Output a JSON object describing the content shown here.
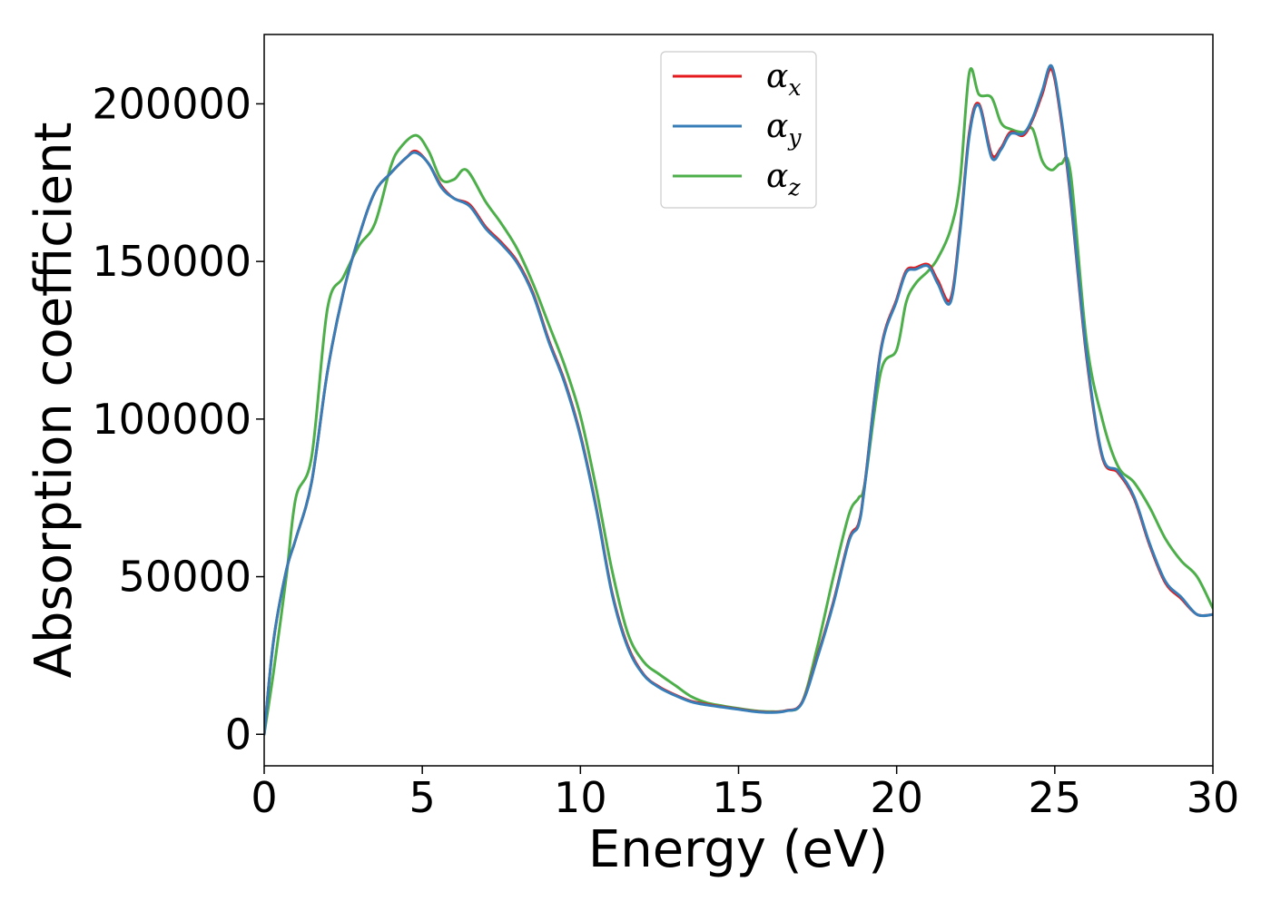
{
  "chart_data": {
    "type": "line",
    "title": "",
    "xlabel": "Energy (eV)",
    "ylabel": "Absorption coefficient",
    "xlim": [
      0,
      30
    ],
    "ylim": [
      -10000,
      222000
    ],
    "xticks": [
      0,
      5,
      10,
      15,
      20,
      25,
      30
    ],
    "yticks": [
      0,
      50000,
      100000,
      150000,
      200000
    ],
    "grid": false,
    "legend": "upper-center",
    "series": [
      {
        "name": "α",
        "subscript": "x",
        "color": "#e41a1c",
        "x": [
          0,
          0.3,
          0.7,
          1.0,
          1.5,
          2.0,
          2.5,
          3.0,
          3.5,
          4.0,
          4.5,
          4.8,
          5.2,
          5.6,
          6.0,
          6.5,
          7.0,
          7.5,
          8.0,
          8.5,
          9.0,
          9.5,
          10.0,
          10.5,
          11.0,
          11.5,
          12.0,
          12.5,
          13.0,
          13.5,
          14.0,
          14.5,
          15.0,
          15.5,
          16.0,
          16.5,
          17.0,
          17.5,
          18.0,
          18.5,
          18.8,
          19.0,
          19.5,
          20.0,
          20.3,
          20.6,
          21.0,
          21.3,
          21.7,
          22.0,
          22.3,
          22.6,
          23.0,
          23.3,
          23.6,
          24.0,
          24.3,
          24.6,
          24.9,
          25.2,
          25.5,
          26.0,
          26.5,
          27.0,
          27.5,
          28.0,
          28.5,
          29.0,
          29.5,
          30.0
        ],
        "y": [
          0,
          30000,
          52000,
          62000,
          80000,
          115000,
          140000,
          158000,
          172000,
          178000,
          183000,
          185000,
          181000,
          174000,
          170000,
          168000,
          161000,
          156000,
          150000,
          140000,
          125000,
          112000,
          95000,
          72000,
          45000,
          28000,
          19000,
          15000,
          12500,
          10500,
          9500,
          8700,
          8000,
          7300,
          7000,
          7500,
          10000,
          25000,
          42000,
          62000,
          67000,
          80000,
          122000,
          138000,
          147000,
          148000,
          149000,
          144000,
          138000,
          160000,
          191000,
          200000,
          184000,
          186000,
          191000,
          190000,
          195000,
          203000,
          211000,
          195000,
          170000,
          120000,
          88000,
          83000,
          75000,
          60000,
          48000,
          43000,
          38000,
          38000
        ]
      },
      {
        "name": "α",
        "subscript": "y",
        "color": "#377eb8",
        "x": [
          0,
          0.3,
          0.7,
          1.0,
          1.5,
          2.0,
          2.5,
          3.0,
          3.5,
          4.0,
          4.5,
          4.8,
          5.2,
          5.6,
          6.0,
          6.5,
          7.0,
          7.5,
          8.0,
          8.5,
          9.0,
          9.5,
          10.0,
          10.5,
          11.0,
          11.5,
          12.0,
          12.5,
          13.0,
          13.5,
          14.0,
          14.5,
          15.0,
          15.5,
          16.0,
          16.5,
          17.0,
          17.5,
          18.0,
          18.5,
          18.8,
          19.0,
          19.5,
          20.0,
          20.3,
          20.6,
          21.0,
          21.3,
          21.7,
          22.0,
          22.3,
          22.6,
          23.0,
          23.3,
          23.6,
          24.0,
          24.3,
          24.6,
          24.9,
          25.2,
          25.5,
          26.0,
          26.5,
          27.0,
          27.5,
          28.0,
          28.5,
          29.0,
          29.5,
          30.0
        ],
        "y": [
          0,
          30000,
          52000,
          62000,
          80000,
          115000,
          140000,
          158000,
          172000,
          178000,
          183000,
          184500,
          181000,
          173500,
          170000,
          167500,
          160500,
          155500,
          149500,
          139500,
          124500,
          111500,
          94500,
          71500,
          44500,
          27500,
          18800,
          14800,
          12300,
          10300,
          9300,
          8600,
          7900,
          7200,
          6900,
          7400,
          9800,
          24500,
          41500,
          61500,
          66500,
          79500,
          121500,
          137500,
          146500,
          147500,
          148500,
          143000,
          137000,
          159000,
          190000,
          199500,
          183000,
          185500,
          190500,
          190500,
          195500,
          204000,
          212000,
          196000,
          171000,
          121000,
          88500,
          83500,
          75500,
          60500,
          48500,
          43500,
          38000,
          38000
        ]
      },
      {
        "name": "α",
        "subscript": "z",
        "color": "#4daf4a",
        "x": [
          0,
          0.3,
          0.7,
          1.0,
          1.5,
          2.0,
          2.5,
          3.0,
          3.5,
          4.0,
          4.3,
          4.8,
          5.2,
          5.6,
          6.0,
          6.4,
          7.0,
          7.5,
          8.0,
          8.5,
          9.0,
          9.5,
          10.0,
          10.5,
          11.0,
          11.5,
          12.0,
          12.5,
          13.0,
          13.5,
          14.0,
          14.5,
          15.0,
          15.5,
          16.0,
          16.5,
          17.0,
          17.5,
          18.0,
          18.5,
          18.8,
          19.0,
          19.5,
          20.0,
          20.3,
          20.6,
          21.0,
          21.3,
          21.7,
          22.0,
          22.3,
          22.6,
          23.0,
          23.3,
          23.6,
          24.0,
          24.3,
          24.6,
          24.9,
          25.2,
          25.5,
          26.0,
          26.5,
          27.0,
          27.5,
          28.0,
          28.5,
          29.0,
          29.5,
          30.0
        ],
        "y": [
          0,
          20000,
          50000,
          75000,
          88000,
          135000,
          145000,
          155000,
          162000,
          180000,
          186000,
          190000,
          185000,
          176000,
          176000,
          179000,
          169000,
          162000,
          154000,
          143000,
          130000,
          117000,
          101000,
          78000,
          52000,
          32000,
          23000,
          19000,
          15500,
          12000,
          10000,
          9000,
          8200,
          7500,
          7200,
          7500,
          10000,
          28000,
          50000,
          70000,
          75000,
          80000,
          115000,
          122000,
          137000,
          143000,
          147000,
          151000,
          160000,
          175000,
          210000,
          203000,
          202000,
          194000,
          192000,
          191000,
          192000,
          182000,
          179000,
          181000,
          178000,
          125000,
          100000,
          85000,
          80000,
          72000,
          62000,
          55000,
          50000,
          40000
        ]
      }
    ]
  }
}
